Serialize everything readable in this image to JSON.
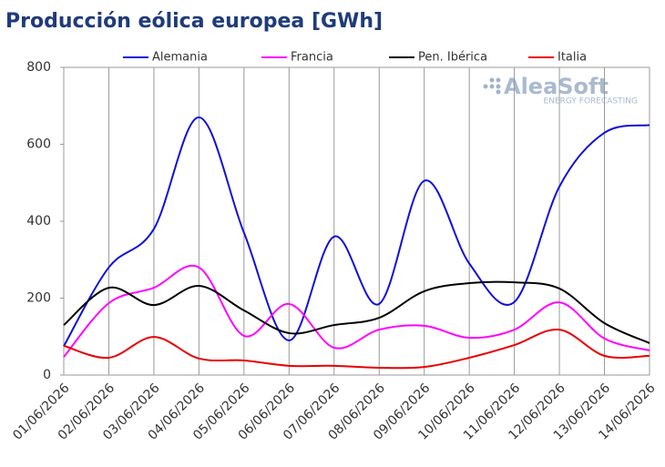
{
  "chart_data": {
    "type": "line",
    "title": "Producción eólica europea [GWh]",
    "logo": {
      "name": "AleaSoft",
      "tagline": "ENERGY FORECASTING"
    },
    "categories": [
      "01/06/2026",
      "02/06/2026",
      "03/06/2026",
      "04/06/2026",
      "05/06/2026",
      "06/06/2026",
      "07/06/2026",
      "08/06/2026",
      "09/06/2026",
      "10/06/2026",
      "11/06/2026",
      "12/06/2026",
      "13/06/2026",
      "14/06/2026"
    ],
    "series": [
      {
        "name": "Alemania",
        "color": "#1010d8",
        "values": [
          75,
          280,
          380,
          670,
          370,
          90,
          360,
          185,
          505,
          290,
          190,
          490,
          630,
          650
        ]
      },
      {
        "name": "Francia",
        "color": "#ff00ff",
        "values": [
          47,
          187,
          227,
          280,
          102,
          185,
          71,
          118,
          128,
          97,
          118,
          189,
          95,
          64
        ]
      },
      {
        "name": "Pen. Ibérica",
        "color": "#000000",
        "values": [
          130,
          227,
          182,
          232,
          168,
          109,
          130,
          149,
          218,
          239,
          241,
          225,
          135,
          83
        ]
      },
      {
        "name": "Italia",
        "color": "#e80000",
        "values": [
          76,
          45,
          99,
          43,
          38,
          24,
          24,
          19,
          21,
          45,
          78,
          118,
          50,
          50
        ]
      }
    ],
    "ylim": [
      0,
      800
    ],
    "yticks": [
      0,
      200,
      400,
      600,
      800
    ],
    "grid": "x",
    "legend": "top"
  }
}
